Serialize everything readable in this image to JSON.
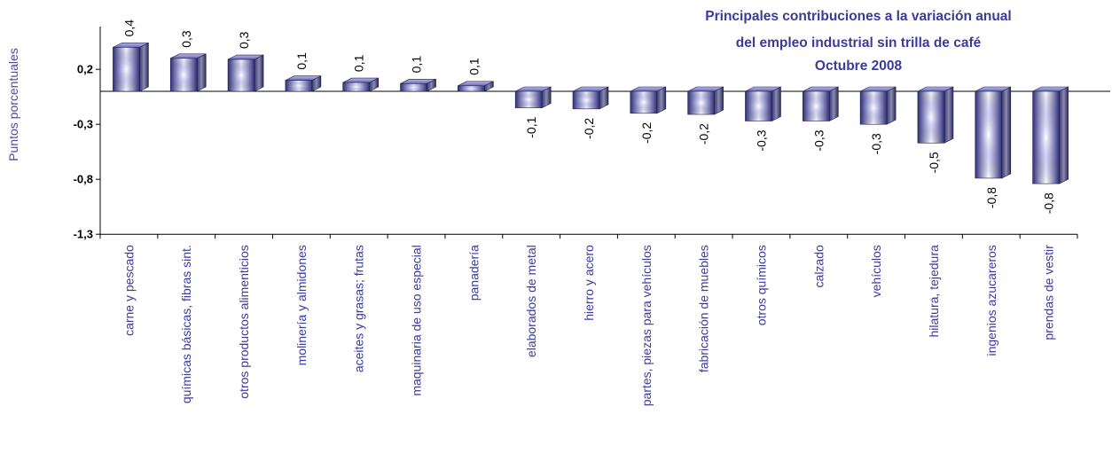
{
  "chart_data": {
    "type": "bar",
    "title_lines": [
      "Principales contribuciones a la variación anual",
      "del empleo industrial sin trilla de café",
      "Octubre 2008"
    ],
    "ylabel": "Puntos porcentuales",
    "xlabel": "",
    "ylim": [
      -1.3,
      0.45
    ],
    "yticks": [
      0.2,
      -0.3,
      -0.8,
      -1.3
    ],
    "ytick_labels": [
      "0,2",
      "-0,3",
      "-0,8",
      "-1,3"
    ],
    "grid": false,
    "legend": "none",
    "categories": [
      "carne y pescado",
      "químicas básicas, fibras sint.",
      "otros productos alimenticios",
      "molinería y almidones",
      "aceites y grasas; frutas",
      "maquinaria de uso especial",
      "panadería",
      "elaborados de metal",
      "hierro y acero",
      "partes, piezas para vehículos",
      "fabricación de muebles",
      "otros químicos",
      "calzado",
      "vehículos",
      "hilatura,  tejedura",
      "ingenios azucareros",
      "prendas de vestir"
    ],
    "values": [
      0.4,
      0.3,
      0.29,
      0.1,
      0.08,
      0.07,
      0.05,
      -0.15,
      -0.16,
      -0.2,
      -0.21,
      -0.27,
      -0.27,
      -0.3,
      -0.47,
      -0.79,
      -0.84
    ],
    "value_labels": [
      "0,4",
      "0,3",
      "0,3",
      "0,1",
      "0,1",
      "0,1",
      "0,1",
      "-0,1",
      "-0,2",
      "-0,2",
      "-0,2",
      "-0,3",
      "-0,3",
      "-0,3",
      "-0,5",
      "-0,8",
      "-0,8"
    ],
    "colors": {
      "bar_dark": "#2e2e7a",
      "bar_mid": "#6a6ad0",
      "bar_light": "#ffffff",
      "title": "#3b3b9a",
      "category": "#3a3aa0"
    }
  }
}
